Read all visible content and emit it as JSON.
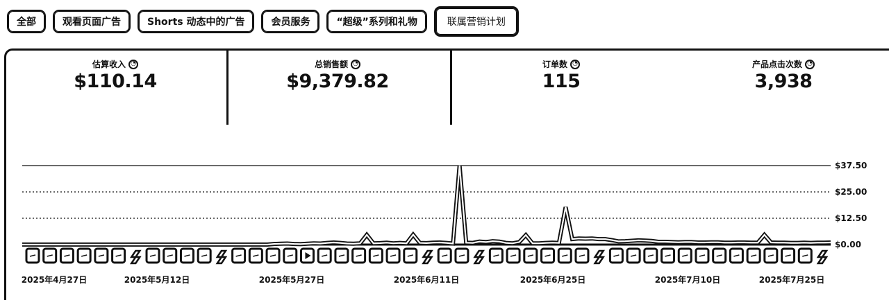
{
  "tabs": [
    {
      "label": "全部"
    },
    {
      "label": "观看页面广告"
    },
    {
      "label": "Shorts 动态中的广告"
    },
    {
      "label": "会员服务"
    },
    {
      "label": "“超级”系列和礼物"
    },
    {
      "label": "联属营销计划"
    }
  ],
  "metrics": [
    {
      "label": "估算收入",
      "value": "$110.14"
    },
    {
      "label": "总销售额",
      "value": "$9,379.82"
    },
    {
      "label": "订单数",
      "value": "115"
    },
    {
      "label": "产品点击次数",
      "value": "3,938"
    }
  ],
  "chart_data": {
    "type": "line",
    "title": "",
    "xlabel": "",
    "ylabel": "",
    "ylim": [
      0,
      37.5
    ],
    "yticks": [
      "$37.50",
      "$25.00",
      "$12.50",
      "$0.00"
    ],
    "ytick_values": [
      37.5,
      25,
      12.5,
      0
    ],
    "xticks": [
      "2025年4月27日",
      "2025年5月12日",
      "2025年5月27日",
      "2025年6月11日",
      "2025年6月25日",
      "2025年7月10日",
      "2025年7月25日"
    ],
    "series": [
      {
        "name": "估算收入",
        "values": [
          0,
          0,
          0,
          0,
          0,
          0,
          0,
          0,
          0,
          0,
          0,
          0,
          0,
          0,
          0,
          0,
          0,
          0,
          0,
          0,
          0,
          0,
          0,
          0,
          0,
          0,
          0,
          0,
          0,
          0,
          0,
          0,
          0,
          0,
          0,
          0,
          0,
          0,
          0.3,
          0.4,
          0.5,
          0.3,
          0.2,
          0.4,
          0.6,
          0.5,
          0.8,
          1.0,
          0.8,
          0.5,
          0.4,
          0.6,
          4.6,
          0.6,
          0.7,
          0.9,
          0.6,
          0.8,
          0.6,
          4.7,
          0.8,
          0.7,
          0.9,
          1.0,
          0.8,
          0.5,
          37.5,
          0.9,
          0.8,
          1.4,
          1.2,
          1.6,
          1.4,
          0.8,
          0.6,
          1.2,
          4.5,
          0.6,
          0.6,
          0.8,
          0.9,
          0.8,
          17.8,
          2.6,
          2.9,
          2.8,
          2.9,
          2.6,
          2.6,
          2.1,
          1.5,
          1.6,
          1.8,
          2.0,
          1.9,
          1.7,
          1.3,
          1.3,
          1.2,
          1.1,
          1.2,
          1.2,
          1.0,
          1.0,
          1.1,
          1.1,
          0.9,
          0.9,
          1.0,
          1.0,
          0.9,
          0.9,
          4.6,
          1.0,
          0.9,
          0.9,
          0.8,
          0.8,
          0.9,
          0.8,
          0.9,
          0.9,
          1.0
        ]
      }
    ],
    "markers": [
      "bar",
      "bar",
      "bar",
      "bar",
      "bar",
      "bar",
      "shorts",
      "bar",
      "bar",
      "bar",
      "bar",
      "shorts",
      "bar",
      "bar",
      "bar",
      "bar",
      "play",
      "bar",
      "bar",
      "bar",
      "bar",
      "bar",
      "bar",
      "shorts",
      "bar",
      "bar",
      "shorts",
      "bar",
      "bar",
      "bar",
      "bar",
      "bar",
      "bar",
      "shorts",
      "bar",
      "bar",
      "bar",
      "bar",
      "bar",
      "bar",
      "bar",
      "bar",
      "bar",
      "bar",
      "bar",
      "bar",
      "shorts"
    ]
  }
}
